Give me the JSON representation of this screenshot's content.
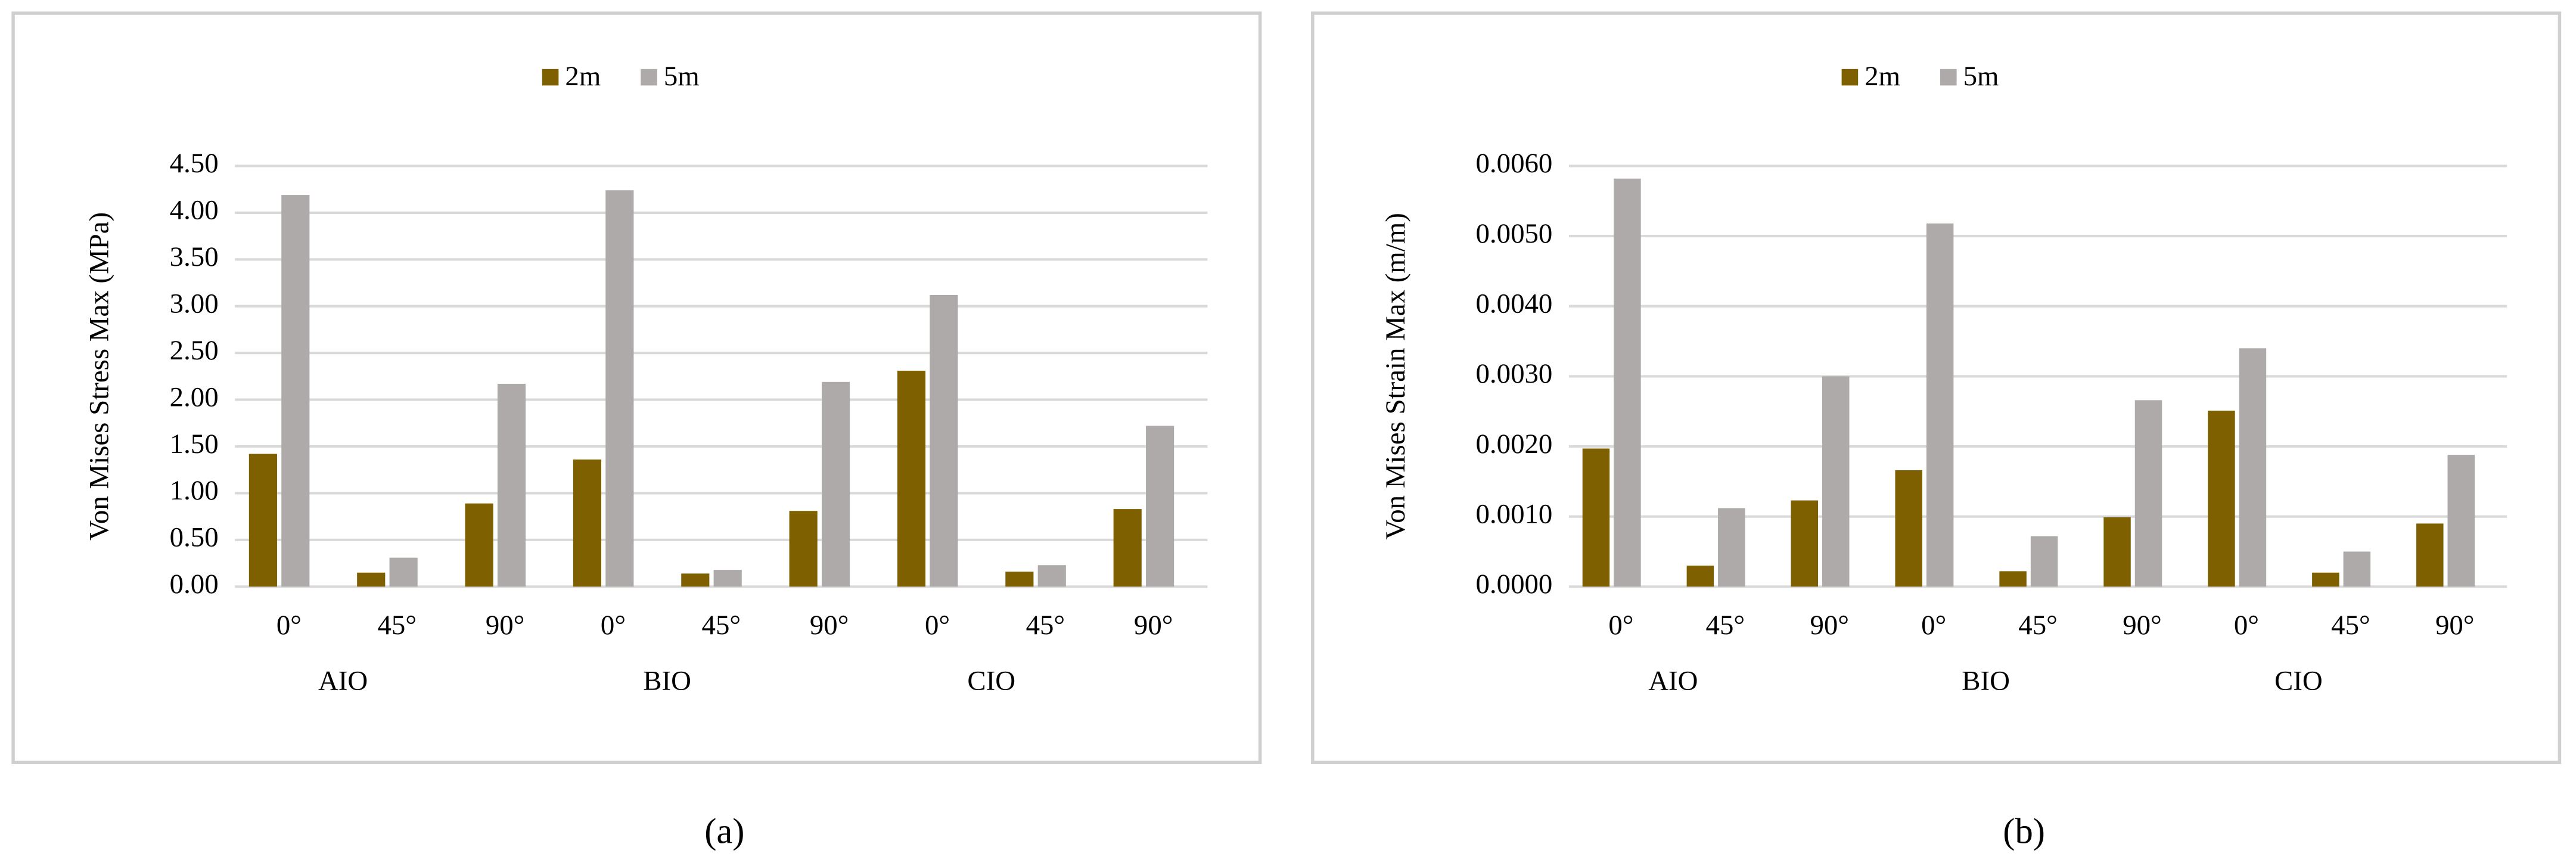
{
  "chart_data": [
    {
      "type": "bar",
      "y_label": "Von Mises Stress Max (MPa)",
      "categories": [
        "0°",
        "45°",
        "90°",
        "0°",
        "45°",
        "90°",
        "0°",
        "45°",
        "90°"
      ],
      "category_groups": [
        "AIO",
        "BIO",
        "CIO"
      ],
      "series": [
        {
          "name": "2m",
          "color": "#7f6000",
          "values": [
            1.42,
            0.15,
            0.89,
            1.36,
            0.14,
            0.81,
            2.31,
            0.16,
            0.83
          ]
        },
        {
          "name": "5m",
          "color": "#aeaaaa",
          "values": [
            4.19,
            0.31,
            2.17,
            4.24,
            0.18,
            2.19,
            3.12,
            0.23,
            1.72
          ]
        }
      ],
      "ylim": [
        0,
        4.5
      ],
      "yticks": [
        {
          "value": 0,
          "label": "0.00"
        },
        {
          "value": 0.5,
          "label": "0.50"
        },
        {
          "value": 1,
          "label": "1.00"
        },
        {
          "value": 1.5,
          "label": "1.50"
        },
        {
          "value": 2,
          "label": "2.00"
        },
        {
          "value": 2.5,
          "label": "2.50"
        },
        {
          "value": 3,
          "label": "3.00"
        },
        {
          "value": 3.5,
          "label": "3.50"
        },
        {
          "value": 4,
          "label": "4.00"
        },
        {
          "value": 4.5,
          "label": "4.50"
        }
      ],
      "grid": true,
      "legend": "top",
      "panel_label": "(a)"
    },
    {
      "type": "bar",
      "y_label": "Von Mises Strain Max (m/m)",
      "categories": [
        "0°",
        "45°",
        "90°",
        "0°",
        "45°",
        "90°",
        "0°",
        "45°",
        "90°"
      ],
      "category_groups": [
        "AIO",
        "BIO",
        "CIO"
      ],
      "series": [
        {
          "name": "2m",
          "color": "#7f6000",
          "values": [
            0.00197,
            0.0003,
            0.00123,
            0.00166,
            0.00022,
            0.00099,
            0.00251,
            0.0002,
            0.0009
          ]
        },
        {
          "name": "5m",
          "color": "#aeaaaa",
          "values": [
            0.00582,
            0.00112,
            0.003,
            0.00518,
            0.00072,
            0.00266,
            0.0034,
            0.0005,
            0.00188
          ]
        }
      ],
      "ylim": [
        0,
        0.006
      ],
      "yticks": [
        {
          "value": 0,
          "label": "0.0000"
        },
        {
          "value": 0.001,
          "label": "0.0010"
        },
        {
          "value": 0.002,
          "label": "0.0020"
        },
        {
          "value": 0.003,
          "label": "0.0030"
        },
        {
          "value": 0.004,
          "label": "0.0040"
        },
        {
          "value": 0.005,
          "label": "0.0050"
        },
        {
          "value": 0.006,
          "label": "0.0060"
        }
      ],
      "grid": true,
      "legend": "top",
      "panel_label": "(b)"
    }
  ]
}
